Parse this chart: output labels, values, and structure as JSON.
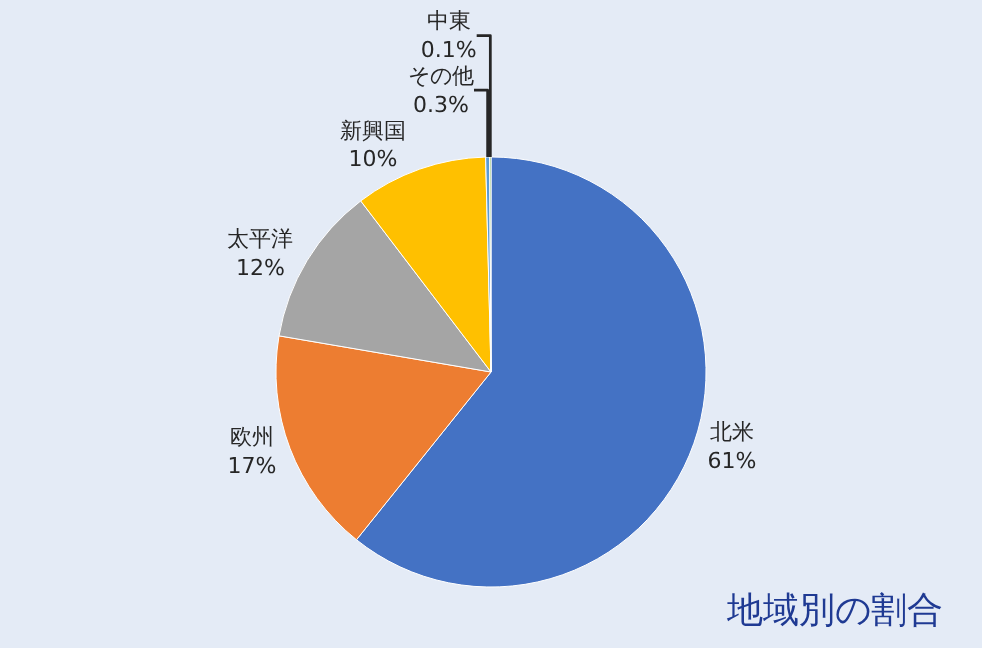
{
  "chart_data": {
    "type": "pie",
    "title": "地域別の割合",
    "categories": [
      "北米",
      "欧州",
      "太平洋",
      "新興国",
      "その他",
      "中東"
    ],
    "values": [
      61,
      17,
      12,
      10,
      0.3,
      0.1
    ],
    "value_labels": [
      "61%",
      "17%",
      "12%",
      "10%",
      "0.3%",
      "0.1%"
    ],
    "colors": [
      "#4472c4",
      "#ed7d31",
      "#a5a5a5",
      "#ffc000",
      "#5b9bd5",
      "#70ad47"
    ],
    "legend": false
  }
}
